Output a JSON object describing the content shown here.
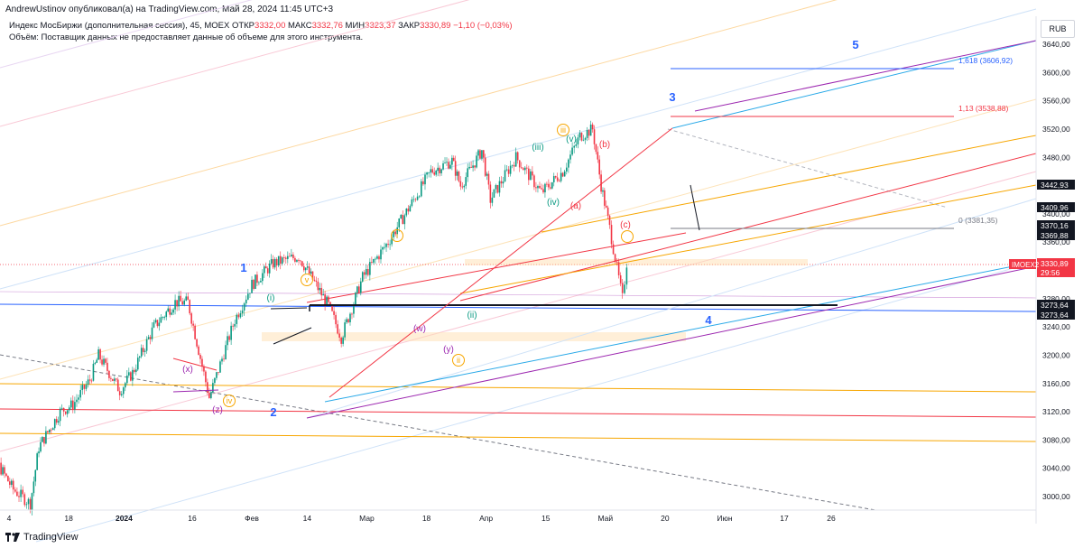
{
  "header": {
    "publisher": "AndrewUstinov опубликовал(а) на TradingView.com, Май 28, 2024 11:45 UTC+3",
    "symbol": "Индекс МосБиржи (дополнительная сессия), 45, MOEX",
    "open_label": "ОТКР",
    "open_value": "3332,00",
    "high_label": "МАКС",
    "high_value": "3332,76",
    "low_label": "МИН",
    "low_value": "3323,37",
    "close_label": "ЗАКР",
    "close_value": "3330,89",
    "change": "−1,10 (−0,03%)",
    "volume_note": "Объём: Поставщик данных не предоставляет данные об объеме для этого инструмента.",
    "currency": "RUB"
  },
  "colors": {
    "up": "#089981",
    "down": "#f23645",
    "axis_text": "#131722",
    "wave_orange": "#f7a600",
    "wave_green": "#089981",
    "wave_purple": "#9c27b0",
    "wave_red": "#f23645",
    "wave_blue": "#2962ff"
  },
  "chart_data": {
    "type": "candlestick",
    "y_ticks": [
      "3640,00",
      "3600,00",
      "3560,00",
      "3520,00",
      "3480,00",
      "3440,00",
      "3400,00",
      "3360,00",
      "3320,00",
      "3280,00",
      "3240,00",
      "3200,00",
      "3160,00",
      "3120,00",
      "3080,00",
      "3040,00",
      "3000,00"
    ],
    "x_ticks": [
      "4",
      "18",
      "2024",
      "16",
      "Фев",
      "14",
      "Мар",
      "18",
      "Апр",
      "15",
      "Май",
      "20",
      "Июн",
      "17",
      "26"
    ],
    "price_labels": [
      {
        "text": "3442,93",
        "style": "dark"
      },
      {
        "text": "3409,96",
        "style": "dark"
      },
      {
        "text": "3370,16",
        "style": "dark"
      },
      {
        "text": "3369,88",
        "style": "dark"
      },
      {
        "text": "3330,89",
        "style": "red"
      },
      {
        "text": "29:56",
        "style": "red"
      },
      {
        "text": "3273,64",
        "style": "dark"
      },
      {
        "text": "3273,64",
        "style": "dark"
      }
    ],
    "symbol_tag": "IMOEX2",
    "fib_labels": [
      "1,618 (3606,92)",
      "1,13 (3538,88)",
      "0 (3381,35)"
    ],
    "close_series": [
      {
        "t": "2023-12-27",
        "v": 3120
      },
      {
        "t": "2023-12-29",
        "v": 3080
      },
      {
        "t": "2024-01-05",
        "v": 3010
      },
      {
        "t": "2024-01-09",
        "v": 2990
      },
      {
        "t": "2024-01-11",
        "v": 3070
      },
      {
        "t": "2024-01-16",
        "v": 3120
      },
      {
        "t": "2024-01-19",
        "v": 3130
      },
      {
        "t": "2024-01-23",
        "v": 3165
      },
      {
        "t": "2024-01-25",
        "v": 3200
      },
      {
        "t": "2024-01-30",
        "v": 3150
      },
      {
        "t": "2024-02-02",
        "v": 3175
      },
      {
        "t": "2024-02-07",
        "v": 3240
      },
      {
        "t": "2024-02-12",
        "v": 3275
      },
      {
        "t": "2024-02-15",
        "v": 3275
      },
      {
        "t": "2024-02-20",
        "v": 3140
      },
      {
        "t": "2024-02-26",
        "v": 3250
      },
      {
        "t": "2024-03-01",
        "v": 3300
      },
      {
        "t": "2024-03-06",
        "v": 3330
      },
      {
        "t": "2024-03-12",
        "v": 3340
      },
      {
        "t": "2024-03-19",
        "v": 3270
      },
      {
        "t": "2024-03-22",
        "v": 3225
      },
      {
        "t": "2024-03-27",
        "v": 3310
      },
      {
        "t": "2024-04-02",
        "v": 3360
      },
      {
        "t": "2024-04-08",
        "v": 3420
      },
      {
        "t": "2024-04-12",
        "v": 3460
      },
      {
        "t": "2024-04-17",
        "v": 3475
      },
      {
        "t": "2024-04-19",
        "v": 3440
      },
      {
        "t": "2024-04-24",
        "v": 3490
      },
      {
        "t": "2024-04-26",
        "v": 3420
      },
      {
        "t": "2024-05-02",
        "v": 3480
      },
      {
        "t": "2024-05-08",
        "v": 3430
      },
      {
        "t": "2024-05-13",
        "v": 3460
      },
      {
        "t": "2024-05-17",
        "v": 3510
      },
      {
        "t": "2024-05-20",
        "v": 3520
      },
      {
        "t": "2024-05-22",
        "v": 3440
      },
      {
        "t": "2024-05-24",
        "v": 3380
      },
      {
        "t": "2024-05-27",
        "v": 3280
      },
      {
        "t": "2024-05-28",
        "v": 3331
      }
    ],
    "wave_labels": [
      {
        "text": "1",
        "color": "blue"
      },
      {
        "text": "2",
        "color": "blue"
      },
      {
        "text": "3",
        "color": "blue"
      },
      {
        "text": "4",
        "color": "blue"
      },
      {
        "text": "5",
        "color": "blue"
      },
      {
        "text": "i",
        "color": "orange"
      },
      {
        "text": "ii",
        "color": "orange"
      },
      {
        "text": "iii",
        "color": "orange"
      },
      {
        "text": "iv",
        "color": "orange"
      },
      {
        "text": "v",
        "color": "orange"
      },
      {
        "text": "(x)",
        "color": "purple"
      },
      {
        "text": "(w)",
        "color": "purple"
      },
      {
        "text": "(y)",
        "color": "purple"
      },
      {
        "text": "(z)",
        "color": "purple"
      },
      {
        "text": "(i)",
        "color": "green"
      },
      {
        "text": "(ii)",
        "color": "green"
      },
      {
        "text": "(iii)",
        "color": "green"
      },
      {
        "text": "(iv)",
        "color": "green"
      },
      {
        "text": "(v)",
        "color": "green"
      },
      {
        "text": "(a)",
        "color": "red"
      },
      {
        "text": "(b)",
        "color": "red"
      },
      {
        "text": "(c)",
        "color": "red"
      }
    ]
  },
  "footer": {
    "brand": "TradingView"
  }
}
